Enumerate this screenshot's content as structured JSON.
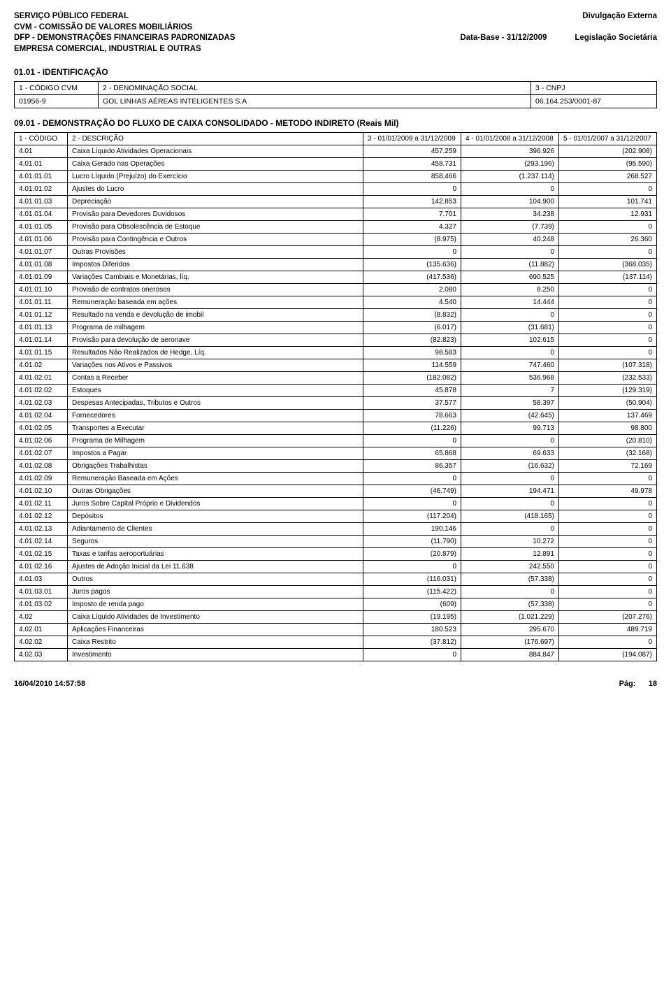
{
  "header": {
    "line1": "SERVIÇO PÚBLICO FEDERAL",
    "line2": "CVM - COMISSÃO DE VALORES MOBILIÁRIOS",
    "line3": "DFP - DEMONSTRAÇÕES FINANCEIRAS PADRONIZADAS",
    "line4": "EMPRESA COMERCIAL, INDUSTRIAL E OUTRAS",
    "right1": "Divulgação Externa",
    "right2": "",
    "right3_left": "Data-Base - 31/12/2009",
    "right3_right": "Legislação Societária"
  },
  "identificacao": {
    "section_title": "01.01 - IDENTIFICAÇÃO",
    "headers": {
      "h1": "1 - CÓDIGO CVM",
      "h2": "2 - DENOMINAÇÃO SOCIAL",
      "h3": "3 - CNPJ"
    },
    "values": {
      "v1": "01956-9",
      "v2": "GOL LINHAS AÉREAS INTELIGENTES S.A",
      "v3": "06.164.253/0001-87"
    }
  },
  "statement_title": "09.01 - DEMONSTRAÇÃO DO FLUXO DE CAIXA CONSOLIDADO - METODO INDIRETO (Reais Mil)",
  "data_headers": {
    "h1": "1 - CÓDIGO",
    "h2": "2 - DESCRIÇÃO",
    "h3": "3 - 01/01/2009 a 31/12/2009",
    "h4": "4 - 01/01/2008 a 31/12/2008",
    "h5": "5 - 01/01/2007 a 31/12/2007"
  },
  "rows": [
    {
      "code": "4.01",
      "desc": "Caixa Líquido Atividades Operacionais",
      "v1": "457.259",
      "v2": "396.926",
      "v3": "(202.908)"
    },
    {
      "code": "4.01.01",
      "desc": "Caixa Gerado nas Operações",
      "v1": "458.731",
      "v2": "(293.196)",
      "v3": "(95.590)"
    },
    {
      "code": "4.01.01.01",
      "desc": "Lucro Líquido (Prejuízo) do Exercício",
      "v1": "858.466",
      "v2": "(1.237.114)",
      "v3": "268.527"
    },
    {
      "code": "4.01.01.02",
      "desc": "Ajustes do Lucro",
      "v1": "0",
      "v2": "0",
      "v3": "0"
    },
    {
      "code": "4.01.01.03",
      "desc": "Depreciação",
      "v1": "142.853",
      "v2": "104.900",
      "v3": "101.741"
    },
    {
      "code": "4.01.01.04",
      "desc": "Provisão para Devedores Duvidosos",
      "v1": "7.701",
      "v2": "34.238",
      "v3": "12.931"
    },
    {
      "code": "4.01.01.05",
      "desc": "Provisão para Obsolescência de Estoque",
      "v1": "4.327",
      "v2": "(7.739)",
      "v3": "0"
    },
    {
      "code": "4.01.01.06",
      "desc": "Provisão para Contingência e Outros",
      "v1": "(8.975)",
      "v2": "40.248",
      "v3": "26.360"
    },
    {
      "code": "4.01.01.07",
      "desc": "Outras Provisões",
      "v1": "0",
      "v2": "0",
      "v3": "0"
    },
    {
      "code": "4.01.01.08",
      "desc": "Impostos Diferidos",
      "v1": "(135.636)",
      "v2": "(11.882)",
      "v3": "(368.035)"
    },
    {
      "code": "4.01.01.09",
      "desc": "Variações Cambiais e Monetárias, líq.",
      "v1": "(417.536)",
      "v2": "690.525",
      "v3": "(137.114)"
    },
    {
      "code": "4.01.01.10",
      "desc": "Provisão de contratos onerosos",
      "v1": "2.080",
      "v2": "8.250",
      "v3": "0"
    },
    {
      "code": "4.01.01.11",
      "desc": "Remuneração baseada em ações",
      "v1": "4.540",
      "v2": "14.444",
      "v3": "0"
    },
    {
      "code": "4.01.01.12",
      "desc": "Resultado na venda e devolução de imobil",
      "v1": "(8.832)",
      "v2": "0",
      "v3": "0"
    },
    {
      "code": "4.01.01.13",
      "desc": "Programa de milhagem",
      "v1": "(6.017)",
      "v2": "(31.681)",
      "v3": "0"
    },
    {
      "code": "4.01.01.14",
      "desc": "Provisão para devolução de aeronave",
      "v1": "(82.823)",
      "v2": "102.615",
      "v3": "0"
    },
    {
      "code": "4.01.01.15",
      "desc": "Resultados Não Realizados de Hedge, Líq.",
      "v1": "98.583",
      "v2": "0",
      "v3": "0"
    },
    {
      "code": "4.01.02",
      "desc": "Variações nos Ativos e Passivos",
      "v1": "114.559",
      "v2": "747.460",
      "v3": "(107.318)"
    },
    {
      "code": "4.01.02.01",
      "desc": "Contas a Receber",
      "v1": "(182.082)",
      "v2": "536.968",
      "v3": "(232.533)"
    },
    {
      "code": "4.01.02.02",
      "desc": "Estoques",
      "v1": "45.878",
      "v2": "7",
      "v3": "(129.319)"
    },
    {
      "code": "4.01.02.03",
      "desc": "Despesas Antecipadas, Tributos e Outros",
      "v1": "37.577",
      "v2": "58.397",
      "v3": "(50.904)"
    },
    {
      "code": "4.01.02.04",
      "desc": "Fornecedores",
      "v1": "78.663",
      "v2": "(42.645)",
      "v3": "137.469"
    },
    {
      "code": "4.01.02.05",
      "desc": "Transportes a Executar",
      "v1": "(11.226)",
      "v2": "99.713",
      "v3": "98.800"
    },
    {
      "code": "4.01.02.06",
      "desc": "Programa de Milhagem",
      "v1": "0",
      "v2": "0",
      "v3": "(20.810)"
    },
    {
      "code": "4.01.02.07",
      "desc": "Impostos a Pagar",
      "v1": "65.868",
      "v2": "69.633",
      "v3": "(32.168)"
    },
    {
      "code": "4.01.02.08",
      "desc": "Obrigações Trabalhistas",
      "v1": "86.357",
      "v2": "(16.632)",
      "v3": "72.169"
    },
    {
      "code": "4.01.02.09",
      "desc": "Remuneração Baseada em Ações",
      "v1": "0",
      "v2": "0",
      "v3": "0"
    },
    {
      "code": "4.01.02.10",
      "desc": "Outras Obrigações",
      "v1": "(46.749)",
      "v2": "194.471",
      "v3": "49.978"
    },
    {
      "code": "4.01.02.11",
      "desc": "Juros Sobre Capital Próprio e Dividendos",
      "v1": "0",
      "v2": "0",
      "v3": "0"
    },
    {
      "code": "4.01.02.12",
      "desc": "Depósitos",
      "v1": "(117.204)",
      "v2": "(418.165)",
      "v3": "0"
    },
    {
      "code": "4.01.02.13",
      "desc": "Adiantamento de Clientes",
      "v1": "190.146",
      "v2": "0",
      "v3": "0"
    },
    {
      "code": "4.01.02.14",
      "desc": "Seguros",
      "v1": "(11.790)",
      "v2": "10.272",
      "v3": "0"
    },
    {
      "code": "4.01.02.15",
      "desc": "Taxas e tarifas aeroportuárias",
      "v1": "(20.879)",
      "v2": "12.891",
      "v3": "0"
    },
    {
      "code": "4.01.02.16",
      "desc": "Ajustes de Adoção Inicial da Lei 11.638",
      "v1": "0",
      "v2": "242.550",
      "v3": "0"
    },
    {
      "code": "4.01.03",
      "desc": "Outros",
      "v1": "(116.031)",
      "v2": "(57.338)",
      "v3": "0"
    },
    {
      "code": "4.01.03.01",
      "desc": "Juros pagos",
      "v1": "(115.422)",
      "v2": "0",
      "v3": "0"
    },
    {
      "code": "4.01.03.02",
      "desc": "Imposto de renda pago",
      "v1": "(609)",
      "v2": "(57.338)",
      "v3": "0"
    },
    {
      "code": "4.02",
      "desc": "Caixa Líquido Atividades de Investimento",
      "v1": "(19.195)",
      "v2": "(1.021.229)",
      "v3": "(207.276)"
    },
    {
      "code": "4.02.01",
      "desc": "Aplicações Financeiras",
      "v1": "180.523",
      "v2": "295.670",
      "v3": "489.719"
    },
    {
      "code": "4.02.02",
      "desc": "Caixa Restrito",
      "v1": "(37.812)",
      "v2": "(176.697)",
      "v3": "0"
    },
    {
      "code": "4.02.03",
      "desc": "Investimento",
      "v1": "0",
      "v2": "884.847",
      "v3": "(194.087)"
    }
  ],
  "footer": {
    "timestamp": "16/04/2010 14:57:58",
    "page_label": "Pág:",
    "page_num": "18"
  }
}
